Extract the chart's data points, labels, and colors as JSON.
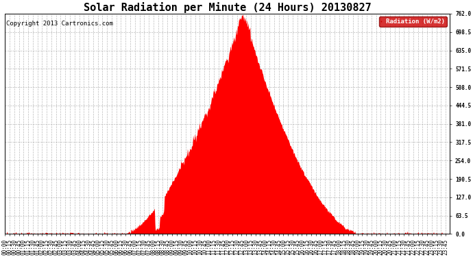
{
  "title": "Solar Radiation per Minute (24 Hours) 20130827",
  "copyright_text": "Copyright 2013 Cartronics.com",
  "legend_label": "Radiation (W/m2)",
  "ylabel_values": [
    0.0,
    63.5,
    127.0,
    190.5,
    254.0,
    317.5,
    381.0,
    444.5,
    508.0,
    571.5,
    635.0,
    698.5,
    762.0
  ],
  "ymax": 762.0,
  "ymin": 0.0,
  "fill_color": "#FF0000",
  "dashed_line_color": "#FF0000",
  "grid_color": "#AAAAAA",
  "bg_color": "#FFFFFF",
  "legend_bg": "#CC0000",
  "legend_text_color": "#FFFFFF",
  "title_fontsize": 11,
  "copyright_fontsize": 6.5,
  "tick_fontsize": 5.5,
  "x_tick_interval_minutes": 15,
  "total_minutes": 1440,
  "sunrise_min": 385,
  "sunset_min": 1155,
  "peak_min": 770,
  "peak_val": 762.0
}
